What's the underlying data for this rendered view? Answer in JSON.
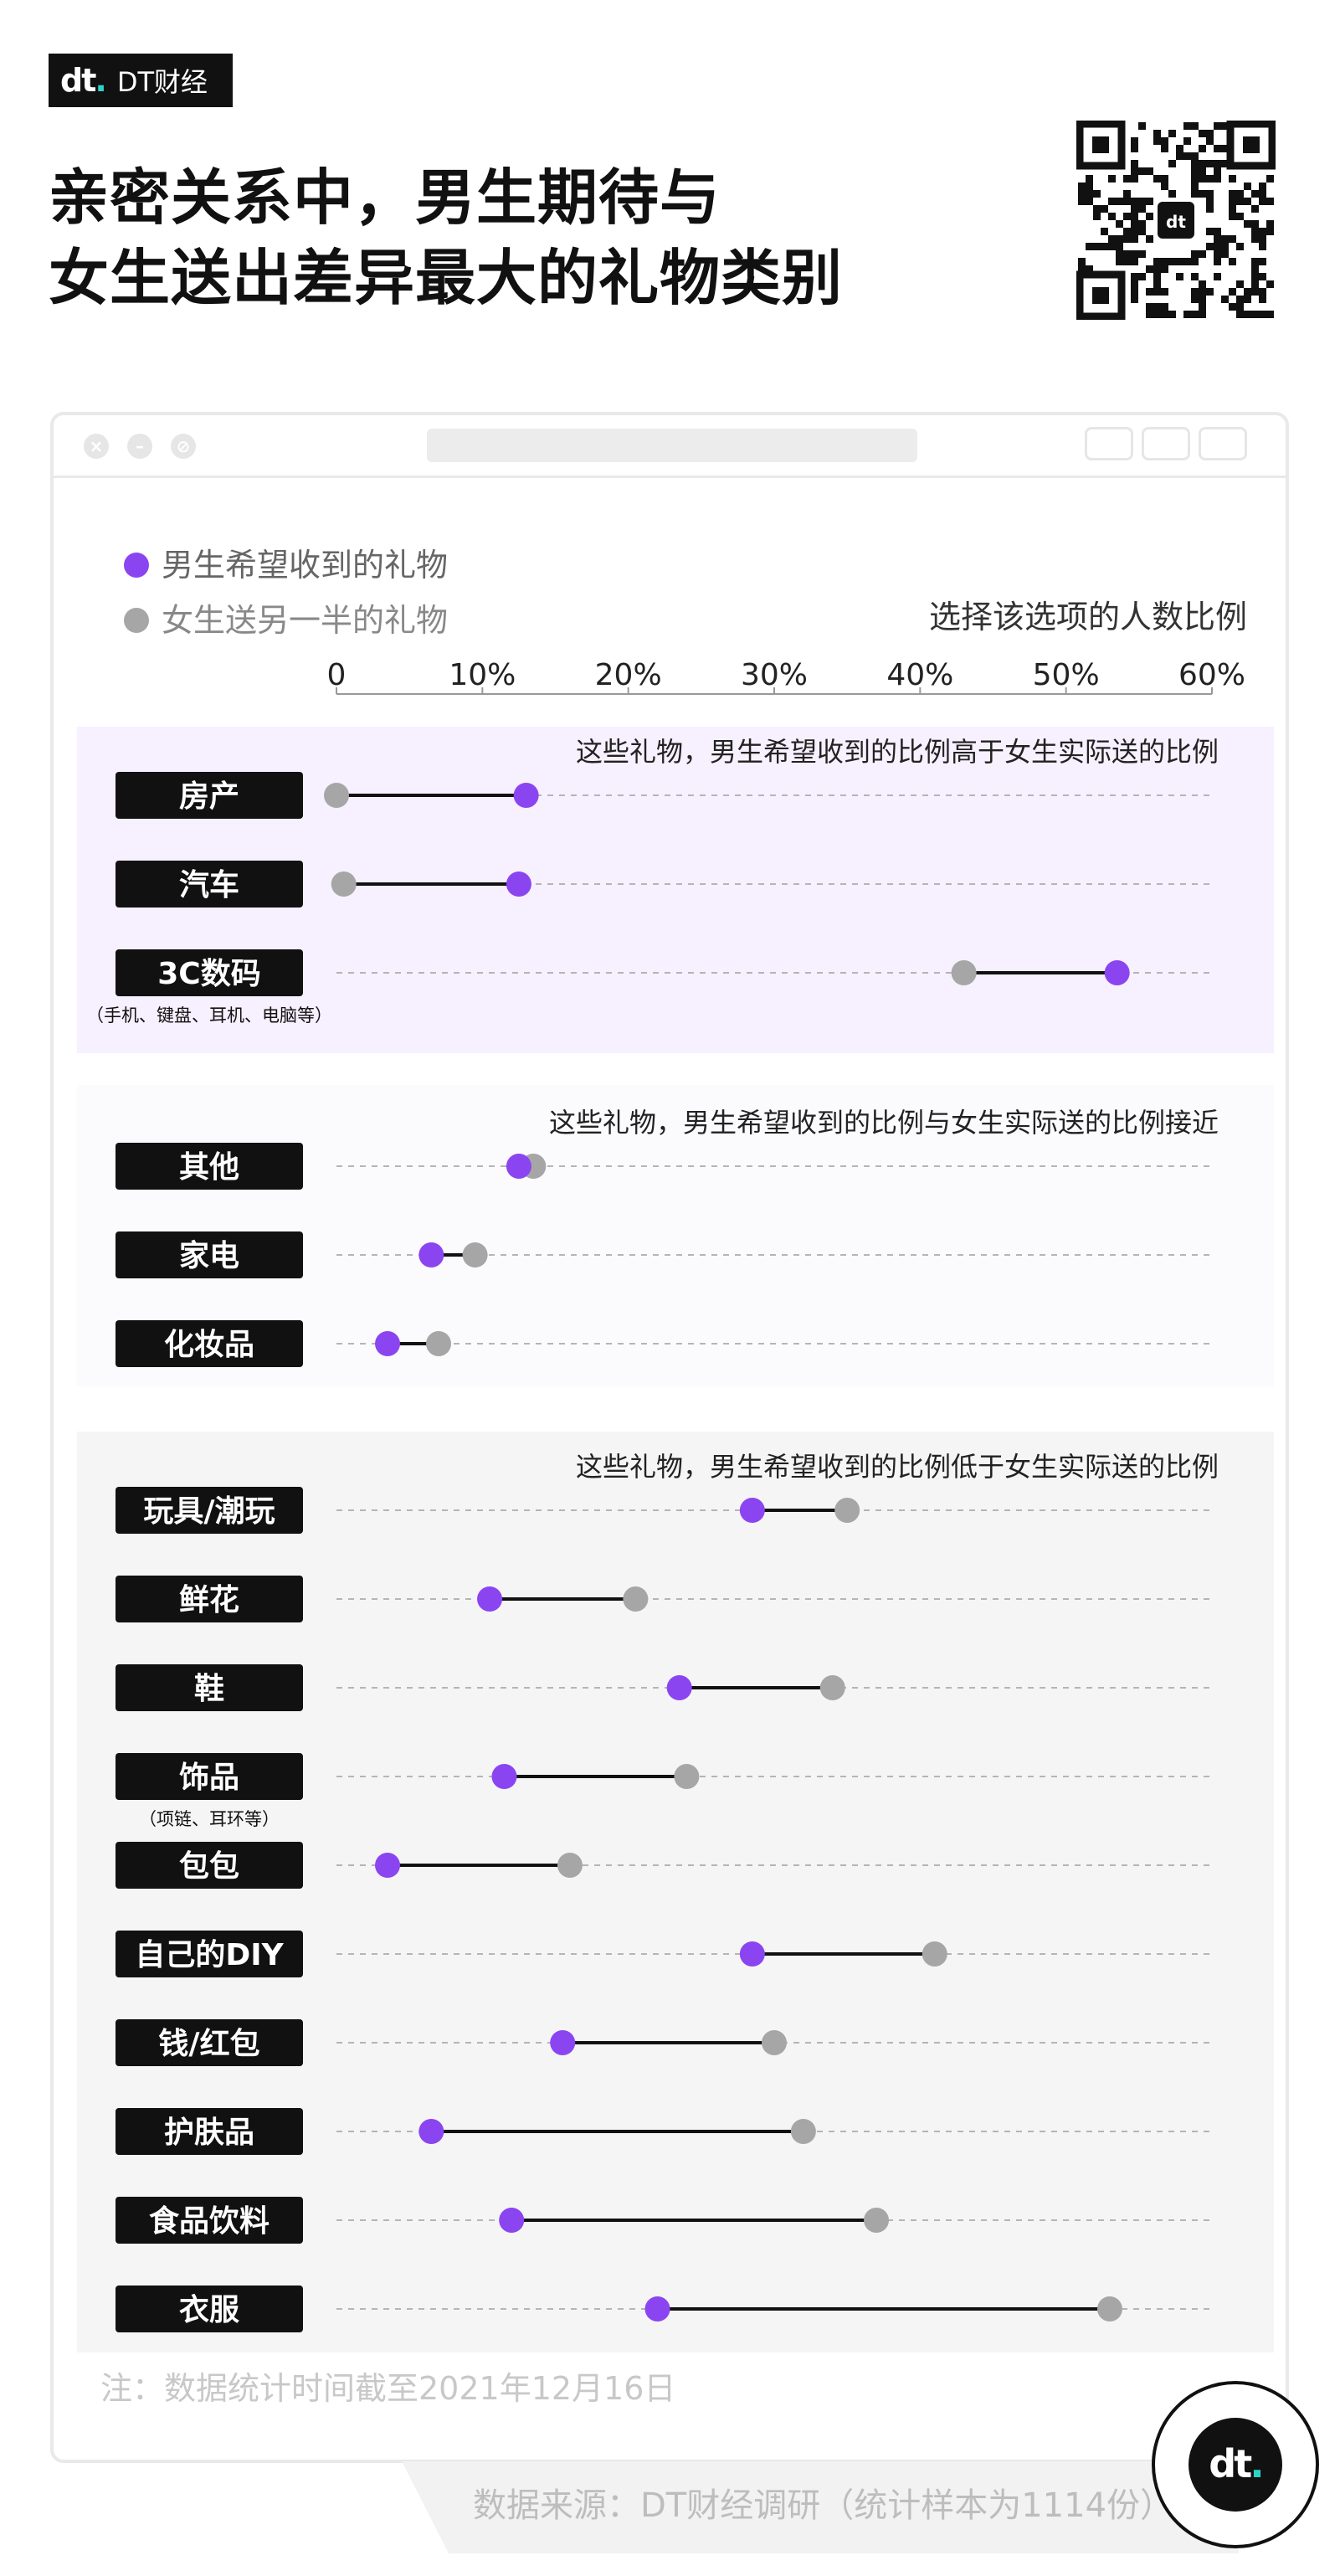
{
  "brand": {
    "mark": "dt",
    "name": "DT财经"
  },
  "title_line1": "亲密关系中，男生期待与",
  "title_line2": "女生送出差异最大的礼物类别",
  "note": "注：数据统计时间截至2021年12月16日",
  "source": "数据来源：DT财经调研（统计样本为1114份）",
  "colors": {
    "male": "#8b45f0",
    "female": "#a6a6a6",
    "band_high": "#f7f0ff",
    "band_close": "#fbfbfd",
    "band_low": "#f5f5f5"
  },
  "chart_data": {
    "type": "dumbbell",
    "xlabel": "选择该选项的人数比例",
    "xlim": [
      0,
      60
    ],
    "xticks": [
      "0",
      "10%",
      "20%",
      "30%",
      "40%",
      "50%",
      "60%"
    ],
    "legend": [
      "男生希望收到的礼物",
      "女生送另一半的礼物"
    ],
    "legend_placement": "top-left",
    "groups": [
      {
        "label": "这些礼物，男生希望收到的比例高于女生实际送的比例",
        "items": [
          {
            "category": "房产",
            "sublabel": "",
            "male": 13.0,
            "female": 0.0
          },
          {
            "category": "汽车",
            "sublabel": "",
            "male": 12.5,
            "female": 0.5
          },
          {
            "category": "3C数码",
            "sublabel": "（手机、键盘、耳机、电脑等）",
            "male": 53.5,
            "female": 43.0
          }
        ]
      },
      {
        "label": "这些礼物，男生希望收到的比例与女生实际送的比例接近",
        "items": [
          {
            "category": "其他",
            "sublabel": "",
            "male": 12.5,
            "female": 13.5
          },
          {
            "category": "家电",
            "sublabel": "",
            "male": 6.5,
            "female": 9.5
          },
          {
            "category": "化妆品",
            "sublabel": "",
            "male": 3.5,
            "female": 7.0
          }
        ]
      },
      {
        "label": "这些礼物，男生希望收到的比例低于女生实际送的比例",
        "items": [
          {
            "category": "玩具/潮玩",
            "sublabel": "",
            "male": 28.5,
            "female": 35.0
          },
          {
            "category": "鲜花",
            "sublabel": "",
            "male": 10.5,
            "female": 20.5
          },
          {
            "category": "鞋",
            "sublabel": "",
            "male": 23.5,
            "female": 34.0
          },
          {
            "category": "饰品",
            "sublabel": "（项链、耳环等）",
            "male": 11.5,
            "female": 24.0
          },
          {
            "category": "包包",
            "sublabel": "",
            "male": 3.5,
            "female": 16.0
          },
          {
            "category": "自己的DIY",
            "sublabel": "",
            "male": 28.5,
            "female": 41.0
          },
          {
            "category": "钱/红包",
            "sublabel": "",
            "male": 15.5,
            "female": 30.0
          },
          {
            "category": "护肤品",
            "sublabel": "",
            "male": 6.5,
            "female": 32.0
          },
          {
            "category": "食品饮料",
            "sublabel": "",
            "male": 12.0,
            "female": 37.0
          },
          {
            "category": "衣服",
            "sublabel": "",
            "male": 22.0,
            "female": 53.0
          }
        ]
      }
    ]
  }
}
